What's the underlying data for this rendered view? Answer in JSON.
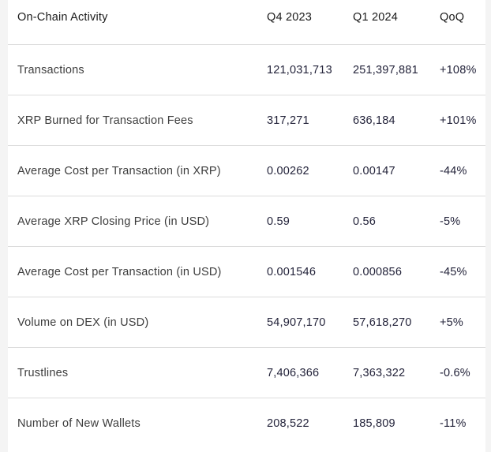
{
  "colors": {
    "page_background": "#f4f4f4",
    "table_background": "#ffffff",
    "divider": "#dcdcdc",
    "header_text": "#1a1a1a",
    "label_text": "#3d3d3d",
    "number_text": "#23233a"
  },
  "table": {
    "header": {
      "metric": "On-Chain Activity",
      "col_q4": "Q4 2023",
      "col_q1": "Q1 2024",
      "col_qoq": "QoQ"
    },
    "rows": [
      {
        "label": "Transactions",
        "q4_2023": "121,031,713",
        "q1_2024": "251,397,881",
        "qoq": "+108%"
      },
      {
        "label": "XRP Burned for Transaction Fees",
        "q4_2023": "317,271",
        "q1_2024": "636,184",
        "qoq": "+101%"
      },
      {
        "label": "Average Cost per Transaction (in XRP)",
        "q4_2023": "0.00262",
        "q1_2024": "0.00147",
        "qoq": "-44%"
      },
      {
        "label": "Average XRP Closing Price (in USD)",
        "q4_2023": "0.59",
        "q1_2024": "0.56",
        "qoq": "-5%"
      },
      {
        "label": "Average Cost per Transaction (in USD)",
        "q4_2023": "0.001546",
        "q1_2024": "0.000856",
        "qoq": "-45%"
      },
      {
        "label": "Volume on DEX (in USD)",
        "q4_2023": "54,907,170",
        "q1_2024": "57,618,270",
        "qoq": "+5%"
      },
      {
        "label": "Trustlines",
        "q4_2023": "7,406,366",
        "q1_2024": "7,363,322",
        "qoq": "-0.6%"
      },
      {
        "label": "Number of New Wallets",
        "q4_2023": "208,522",
        "q1_2024": "185,809",
        "qoq": "-11%"
      }
    ]
  },
  "chart_data": {
    "type": "table",
    "title": "On-Chain Activity",
    "columns": [
      "On-Chain Activity",
      "Q4 2023",
      "Q1 2024",
      "QoQ"
    ],
    "rows": [
      [
        "Transactions",
        "121,031,713",
        "251,397,881",
        "+108%"
      ],
      [
        "XRP Burned for Transaction Fees",
        "317,271",
        "636,184",
        "+101%"
      ],
      [
        "Average Cost per Transaction (in XRP)",
        "0.00262",
        "0.00147",
        "-44%"
      ],
      [
        "Average XRP Closing Price (in USD)",
        "0.59",
        "0.56",
        "-5%"
      ],
      [
        "Average Cost per Transaction (in USD)",
        "0.001546",
        "0.000856",
        "-45%"
      ],
      [
        "Volume on DEX (in USD)",
        "54,907,170",
        "57,618,270",
        "+5%"
      ],
      [
        "Trustlines",
        "7,406,366",
        "7,363,322",
        "-0.6%"
      ],
      [
        "Number of New Wallets",
        "208,522",
        "185,809",
        "-11%"
      ]
    ]
  }
}
